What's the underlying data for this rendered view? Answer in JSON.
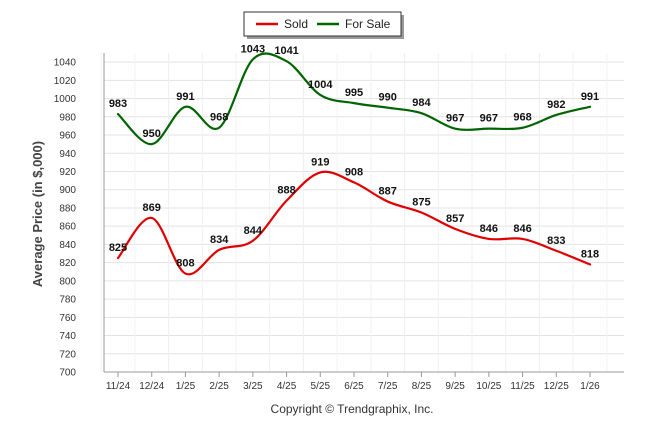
{
  "chart_data": {
    "type": "line",
    "title": "",
    "xlabel": "",
    "ylabel": "Average Price (in $,000)",
    "categories": [
      "11/24",
      "12/24",
      "1/25",
      "2/25",
      "3/25",
      "4/25",
      "5/25",
      "6/25",
      "7/25",
      "8/25",
      "9/25",
      "10/25",
      "11/25",
      "12/25",
      "1/26"
    ],
    "ylim": [
      700,
      1050
    ],
    "yticks": [
      700,
      720,
      740,
      760,
      780,
      800,
      820,
      840,
      860,
      880,
      900,
      920,
      940,
      960,
      980,
      1000,
      1020,
      1040
    ],
    "grid": true,
    "legend_position": "top-center",
    "series": [
      {
        "name": "Sold",
        "color": "#e00000",
        "values": [
          825,
          869,
          808,
          834,
          844,
          888,
          919,
          908,
          887,
          875,
          857,
          846,
          846,
          833,
          818
        ]
      },
      {
        "name": "For Sale",
        "color": "#006400",
        "values": [
          983,
          950,
          991,
          968,
          1043,
          1041,
          1004,
          995,
          990,
          984,
          967,
          967,
          968,
          982,
          991
        ]
      }
    ]
  },
  "footer": {
    "copyright": "Copyright © Trendgraphix, Inc."
  }
}
